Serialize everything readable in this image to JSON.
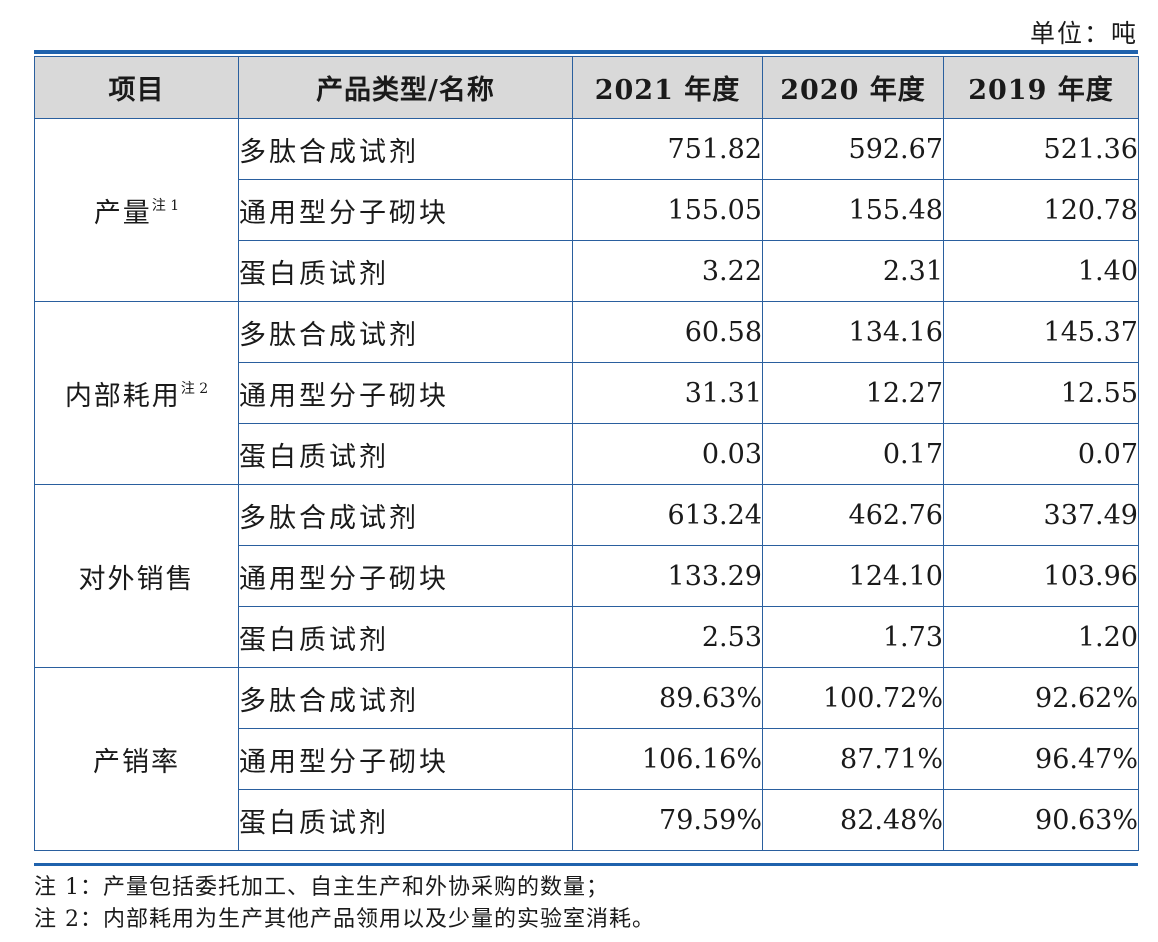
{
  "unit_label": "单位：吨",
  "headers": [
    "项目",
    "产品类型/名称",
    "2021 年度",
    "2020 年度",
    "2019 年度"
  ],
  "groups": [
    {
      "label": "产量",
      "note_mark": "注 1",
      "rows": [
        {
          "name": "多肽合成试剂",
          "v2021": "751.82",
          "v2020": "592.67",
          "v2019": "521.36"
        },
        {
          "name": "通用型分子砌块",
          "v2021": "155.05",
          "v2020": "155.48",
          "v2019": "120.78"
        },
        {
          "name": "蛋白质试剂",
          "v2021": "3.22",
          "v2020": "2.31",
          "v2019": "1.40"
        }
      ]
    },
    {
      "label": "内部耗用",
      "note_mark": "注 2",
      "rows": [
        {
          "name": "多肽合成试剂",
          "v2021": "60.58",
          "v2020": "134.16",
          "v2019": "145.37"
        },
        {
          "name": "通用型分子砌块",
          "v2021": "31.31",
          "v2020": "12.27",
          "v2019": "12.55"
        },
        {
          "name": "蛋白质试剂",
          "v2021": "0.03",
          "v2020": "0.17",
          "v2019": "0.07"
        }
      ]
    },
    {
      "label": "对外销售",
      "note_mark": "",
      "rows": [
        {
          "name": "多肽合成试剂",
          "v2021": "613.24",
          "v2020": "462.76",
          "v2019": "337.49"
        },
        {
          "name": "通用型分子砌块",
          "v2021": "133.29",
          "v2020": "124.10",
          "v2019": "103.96"
        },
        {
          "name": "蛋白质试剂",
          "v2021": "2.53",
          "v2020": "1.73",
          "v2019": "1.20"
        }
      ]
    },
    {
      "label": "产销率",
      "note_mark": "",
      "rows": [
        {
          "name": "多肽合成试剂",
          "v2021": "89.63%",
          "v2020": "100.72%",
          "v2019": "92.62%"
        },
        {
          "name": "通用型分子砌块",
          "v2021": "106.16%",
          "v2020": "87.71%",
          "v2019": "96.47%"
        },
        {
          "name": "蛋白质试剂",
          "v2021": "79.59%",
          "v2020": "82.48%",
          "v2019": "90.63%"
        }
      ]
    }
  ],
  "notes": [
    "注 1：产量包括委托加工、自主生产和外协采购的数量；",
    "注 2：内部耗用为生产其他产品领用以及少量的实验室消耗。"
  ],
  "colors": {
    "rule": "#1f62ad",
    "grid": "#2a5f9e",
    "header_bg": "#d9d9d9"
  }
}
